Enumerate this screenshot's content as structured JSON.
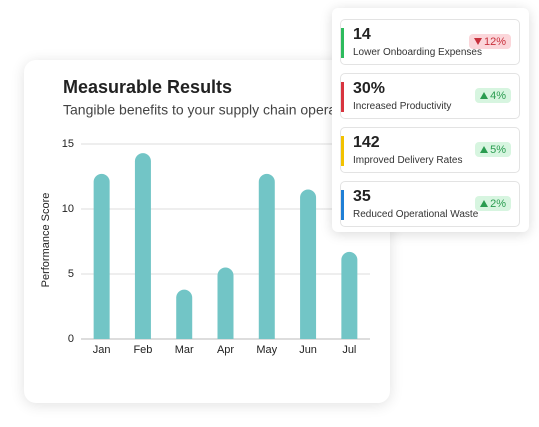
{
  "chart_data": {
    "type": "bar",
    "title": "Measurable Results",
    "subtitle": "Tangible benefits to your supply chain operations",
    "y_label": "Performance Score",
    "categories": [
      "Jan",
      "Feb",
      "Mar",
      "Apr",
      "May",
      "Jun",
      "Jul"
    ],
    "values": [
      12.7,
      14.3,
      3.8,
      5.5,
      12.7,
      11.5,
      6.7
    ],
    "color": "#72c5c6",
    "ylim": [
      0,
      15
    ],
    "yticks": [
      0,
      5,
      10,
      15
    ],
    "grid": true
  },
  "metrics": [
    {
      "value": "14",
      "label": "Lower Onboarding Expenses",
      "change": "12%",
      "direction": "down",
      "color": "#2dbb5d"
    },
    {
      "value": "30%",
      "label": "Increased Productivity",
      "change": "4%",
      "direction": "up",
      "color": "#d8343f"
    },
    {
      "value": "142",
      "label": "Improved Delivery Rates",
      "change": "5%",
      "direction": "up",
      "color": "#f2c200"
    },
    {
      "value": "35",
      "label": "Reduced Operational Waste",
      "change": "2%",
      "direction": "up",
      "color": "#1f7fd6"
    }
  ]
}
